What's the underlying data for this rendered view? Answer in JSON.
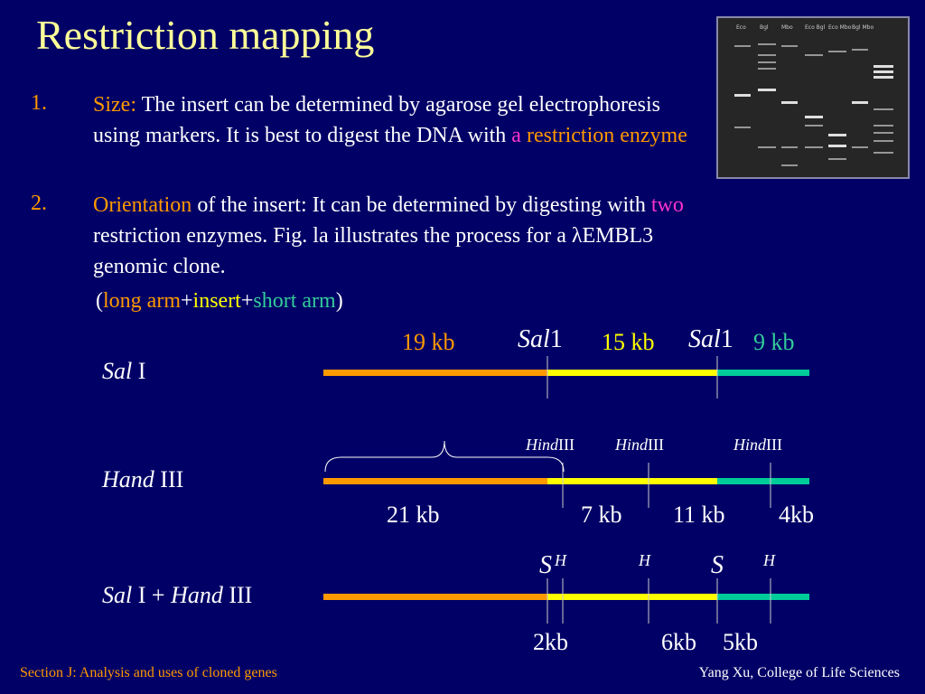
{
  "slide": {
    "title": "Restriction mapping",
    "items": [
      {
        "number": "1.",
        "keyword": "Size:",
        "text_a": " The insert can be determined by agarose gel electrophoresis using markers. It is best to digest the DNA with ",
        "highlight_a": "a",
        "text_b": " ",
        "highlight_b": "restriction enzyme"
      },
      {
        "number": "2.",
        "keyword": "Orientation",
        "text_a": " of the insert:   It can be determined by digesting with ",
        "highlight_a": "two",
        "text_b": " restriction enzymes. Fig. la illustrates the process for a λEMBL3 genomic clone."
      }
    ],
    "arms": {
      "open": "(",
      "long_arm": "long arm",
      "plus1": "+",
      "insert": "insert",
      "plus2": "+",
      "short_arm": "short arm",
      "close": ")"
    },
    "gel_lanes": [
      "Eco",
      "Bgl",
      "Mbo",
      "Eco Bgl",
      "Eco Mbo",
      "Bgl Mbo",
      ""
    ]
  },
  "map": {
    "row1": {
      "label_italic": "Sal",
      "label_rest": " I",
      "seg1": "19 kb",
      "seg2": "15 kb",
      "seg3": "9 kb",
      "site_italic": "Sal",
      "site_rest": "1"
    },
    "row2": {
      "label_italic": "Hand",
      "label_rest": " III",
      "site_italic": "Hind",
      "site_rest": "III",
      "seg1": "21 kb",
      "seg2": "7 kb",
      "seg3": "11 kb",
      "seg4": "4kb"
    },
    "row3": {
      "label_italic1": "Sal",
      "label_mid": " I + ",
      "label_italic2": "Hand",
      "label_rest": " III",
      "site_s": "S",
      "site_h": "H",
      "seg1": "2kb",
      "seg2": "6kb",
      "seg3": "5kb"
    },
    "colors": {
      "long_arm": "#ff9900",
      "insert": "#ffff00",
      "short_arm": "#00cc99"
    }
  },
  "footer": {
    "left": "Section J: Analysis and uses of cloned genes",
    "right": "Yang Xu, College of Life Sciences"
  }
}
